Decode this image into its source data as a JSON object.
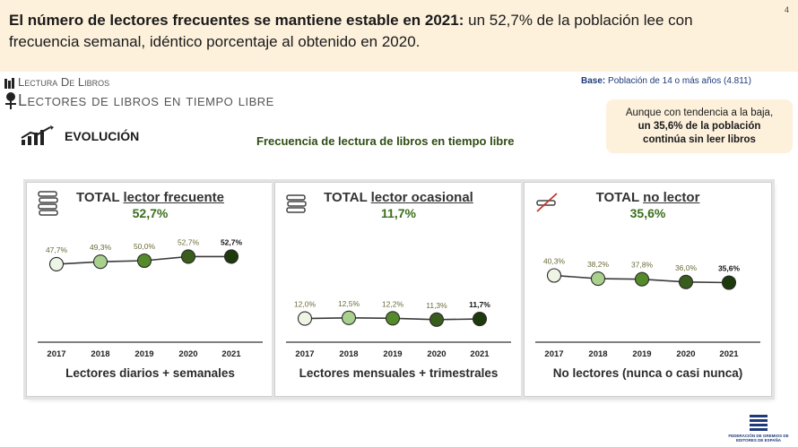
{
  "headline": {
    "bold": "El número de lectores frecuentes se mantiene estable en 2021:",
    "rest": " un 52,7% de la población lee con frecuencia semanal, idéntico porcentaje al obtenido en 2020."
  },
  "page_number": "4",
  "section": {
    "line1": "Lectura De Libros",
    "line2": "Lectores de libros en tiempo libre"
  },
  "base": {
    "label": "Base:",
    "text": " Población de 14 o más años (4.811)"
  },
  "note": {
    "line1": "Aunque con tendencia a la baja,",
    "bold1": "un 35,6% de la población",
    "bold2": "continúa sin leer libros"
  },
  "evolucion_label": "EVOLUCIÓN",
  "chart_title": "Frecuencia de lectura de libros en tiempo libre",
  "logo_text": "FEDERACIÓN DE GREMIOS DE EDITORES DE ESPAÑA",
  "colors": [
    "#eef5e4",
    "#a9d18e",
    "#558a2b",
    "#385d1c",
    "#1d3a0c"
  ],
  "chart_data": [
    {
      "type": "line",
      "title_prefix": "TOTAL ",
      "title_u": "lector frecuente",
      "total": "52,7%",
      "footer": "Lectores diarios + semanales",
      "categories": [
        "2017",
        "2018",
        "2019",
        "2020",
        "2021"
      ],
      "values": [
        47.7,
        49.3,
        50.0,
        52.7,
        52.7
      ],
      "labels": [
        "47,7%",
        "49,3%",
        "50,0%",
        "52,7%",
        "52,7%"
      ],
      "ylim": [
        0,
        60
      ]
    },
    {
      "type": "line",
      "title_prefix": "TOTAL ",
      "title_u": "lector ocasional",
      "total": "11,7%",
      "footer": "Lectores mensuales + trimestrales",
      "categories": [
        "2017",
        "2018",
        "2019",
        "2020",
        "2021"
      ],
      "values": [
        12.0,
        12.5,
        12.2,
        11.3,
        11.7
      ],
      "labels": [
        "12,0%",
        "12,5%",
        "12,2%",
        "11,3%",
        "11,7%"
      ],
      "ylim": [
        0,
        60
      ]
    },
    {
      "type": "line",
      "title_prefix": "TOTAL ",
      "title_u": "no lector",
      "total": "35,6%",
      "footer": "No lectores (nunca o casi nunca)",
      "categories": [
        "2017",
        "2018",
        "2019",
        "2020",
        "2021"
      ],
      "values": [
        40.3,
        38.2,
        37.8,
        36.0,
        35.6
      ],
      "labels": [
        "40,3%",
        "38,2%",
        "37,8%",
        "36,0%",
        "35,6%"
      ],
      "ylim": [
        0,
        60
      ]
    }
  ]
}
